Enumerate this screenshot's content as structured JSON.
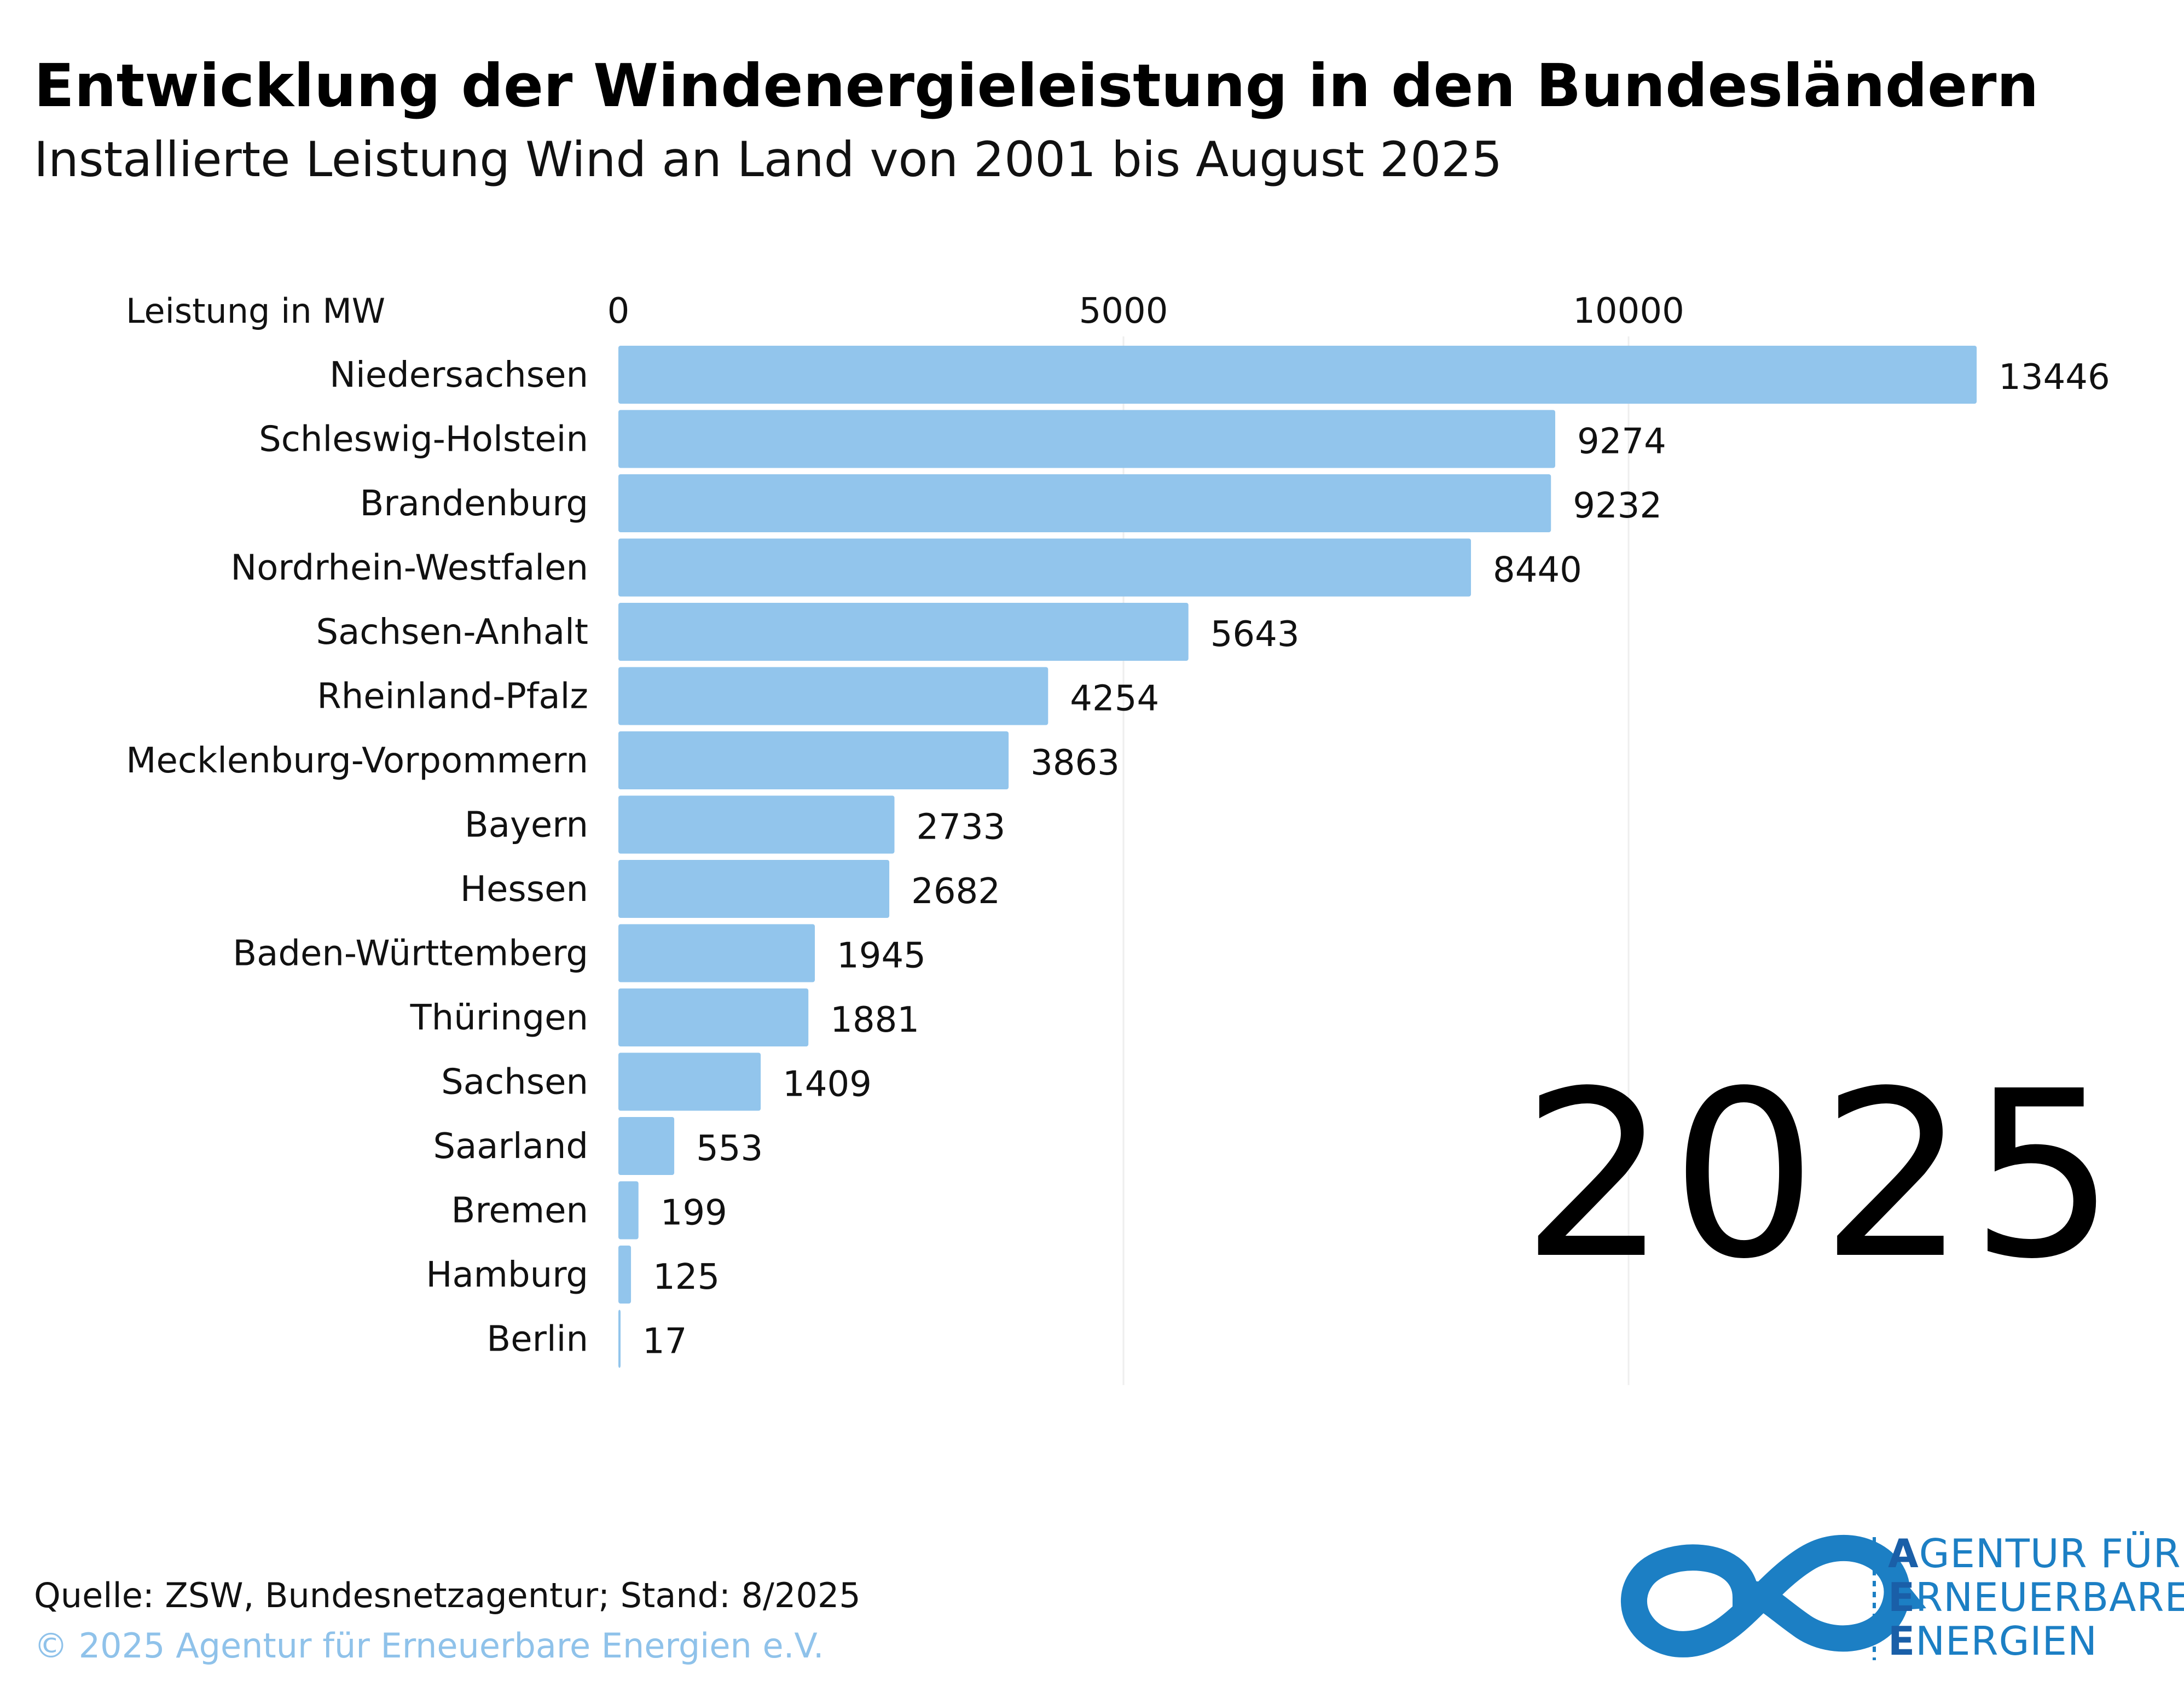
{
  "header": {
    "title": "Entwicklung der Windenergieleistung in den Bundesländern",
    "subtitle": "Installierte Leistung Wind an Land von 2001 bis August 2025"
  },
  "year_label": "2025",
  "footer": {
    "source": "Quelle: ZSW, Bundesnetzagentur; Stand: 8/2025",
    "copyright": "© 2025 Agentur für Erneuerbare Energien e.V."
  },
  "logo": {
    "line1_initial": "A",
    "line1_rest": "GENTUR FÜR",
    "line2_initial": "E",
    "line2_rest": "RNEUERBARE",
    "line3_initial": "E",
    "line3_rest": "NERGIEN",
    "icon": "infinity-icon"
  },
  "colors": {
    "bar": "#92c5ec",
    "grid": "#eeeeee",
    "logo_blue": "#1c7fc4"
  },
  "chart_data": {
    "type": "bar",
    "orientation": "horizontal",
    "xlabel": "Leistung in MW",
    "xlim": [
      0,
      13446
    ],
    "xticks": [
      0,
      5000,
      10000
    ],
    "grid": true,
    "categories": [
      "Niedersachsen",
      "Schleswig-Holstein",
      "Brandenburg",
      "Nordrhein-Westfalen",
      "Sachsen-Anhalt",
      "Rheinland-Pfalz",
      "Mecklenburg-Vorpommern",
      "Bayern",
      "Hessen",
      "Baden-Württemberg",
      "Thüringen",
      "Sachsen",
      "Saarland",
      "Bremen",
      "Hamburg",
      "Berlin"
    ],
    "values": [
      13446,
      9274,
      9232,
      8440,
      5643,
      4254,
      3863,
      2733,
      2682,
      1945,
      1881,
      1409,
      553,
      199,
      125,
      17
    ]
  }
}
